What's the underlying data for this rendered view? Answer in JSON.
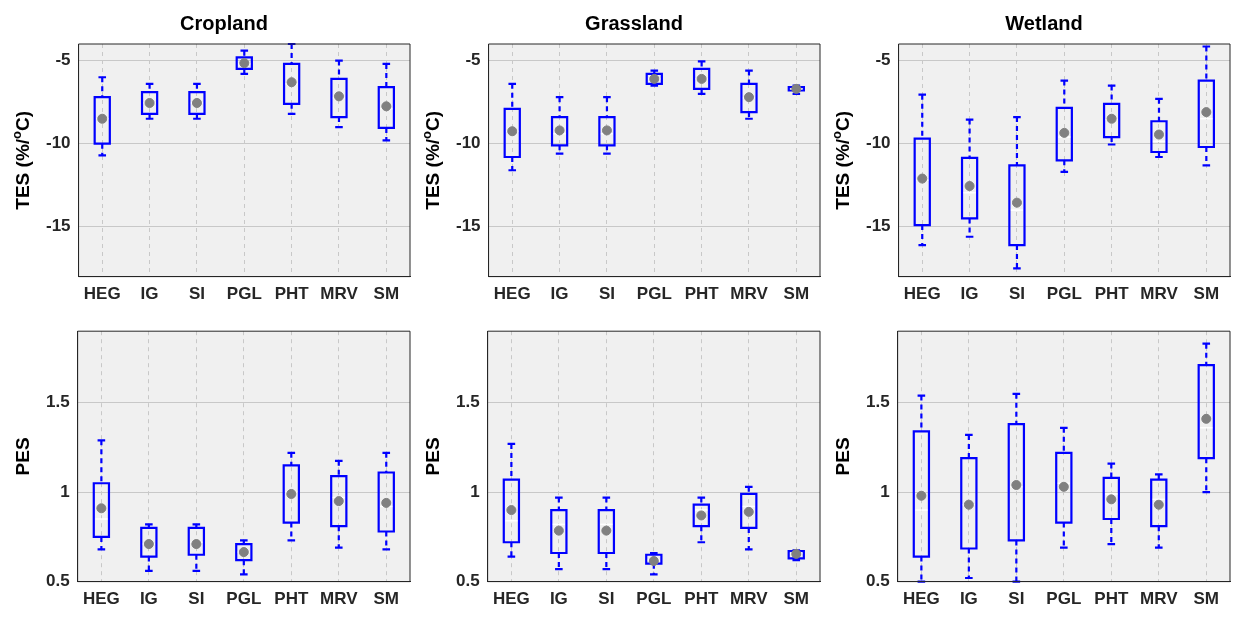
{
  "chart_data": [
    {
      "type": "box",
      "title": "Cropland",
      "ylabel": "TES (%/$^{o}$C)",
      "categories": [
        "HEG",
        "IG",
        "SI",
        "PGL",
        "PHT",
        "MRV",
        "SM"
      ],
      "ylim": [
        -18,
        -4
      ],
      "yticks": [
        -15,
        -10,
        -5
      ],
      "grid": true,
      "series": [
        {
          "color": "#0000ff",
          "boxes": [
            {
              "low": -10.7,
              "q1": -10.0,
              "median": -8.5,
              "q3": -7.2,
              "high": -6.0,
              "mean": -8.5
            },
            {
              "low": -8.5,
              "q1": -8.2,
              "median": -7.55,
              "q3": -6.9,
              "high": -6.4,
              "mean": -7.55
            },
            {
              "low": -8.5,
              "q1": -8.2,
              "median": -7.55,
              "q3": -6.9,
              "high": -6.4,
              "mean": -7.55
            },
            {
              "low": -5.8,
              "q1": -5.5,
              "median": -5.2,
              "q3": -4.8,
              "high": -4.4,
              "mean": -5.15
            },
            {
              "low": -8.2,
              "q1": -7.6,
              "median": -6.4,
              "q3": -5.2,
              "high": -4.0,
              "mean": -6.3
            },
            {
              "low": -9.0,
              "q1": -8.4,
              "median": -7.25,
              "q3": -6.1,
              "high": -5.0,
              "mean": -7.15
            },
            {
              "low": -9.8,
              "q1": -9.05,
              "median": -7.9,
              "q3": -6.6,
              "high": -5.2,
              "mean": -7.75
            }
          ]
        }
      ]
    },
    {
      "type": "box",
      "title": "Grassland",
      "ylabel": "TES (%/$^{o}$C)",
      "categories": [
        "HEG",
        "IG",
        "SI",
        "PGL",
        "PHT",
        "MRV",
        "SM"
      ],
      "ylim": [
        -18,
        -4
      ],
      "yticks": [
        -15,
        -10,
        -5
      ],
      "grid": true,
      "series": [
        {
          "color": "#0000ff",
          "boxes": [
            {
              "low": -11.6,
              "q1": -10.8,
              "median": -9.25,
              "q3": -7.9,
              "high": -6.4,
              "mean": -9.25
            },
            {
              "low": -10.6,
              "q1": -10.1,
              "median": -9.4,
              "q3": -8.4,
              "high": -7.2,
              "mean": -9.2
            },
            {
              "low": -10.6,
              "q1": -10.1,
              "median": -9.4,
              "q3": -8.4,
              "high": -7.2,
              "mean": -9.2
            },
            {
              "low": -6.5,
              "q1": -6.4,
              "median": -6.1,
              "q3": -5.8,
              "high": -5.6,
              "mean": -6.1
            },
            {
              "low": -7.0,
              "q1": -6.7,
              "median": -6.1,
              "q3": -5.5,
              "high": -5.05,
              "mean": -6.1
            },
            {
              "low": -8.5,
              "q1": -8.1,
              "median": -7.25,
              "q3": -6.4,
              "high": -5.6,
              "mean": -7.2
            },
            {
              "low": -7.0,
              "q1": -6.8,
              "median": -6.7,
              "q3": -6.6,
              "high": -6.5,
              "mean": -6.7
            }
          ]
        }
      ]
    },
    {
      "type": "box",
      "title": "Wetland",
      "ylabel": "TES (%/$^{o}$C)",
      "categories": [
        "HEG",
        "IG",
        "SI",
        "PGL",
        "PHT",
        "MRV",
        "SM"
      ],
      "ylim": [
        -18,
        -4
      ],
      "yticks": [
        -15,
        -10,
        -5
      ],
      "grid": true,
      "series": [
        {
          "color": "#0000ff",
          "boxes": [
            {
              "low": -16.1,
              "q1": -14.9,
              "median": -12.2,
              "q3": -9.7,
              "high": -7.05,
              "mean": -12.1
            },
            {
              "low": -15.6,
              "q1": -14.5,
              "median": -12.95,
              "q3": -10.85,
              "high": -8.55,
              "mean": -12.55
            },
            {
              "low": -17.5,
              "q1": -16.1,
              "median": -14.0,
              "q3": -11.3,
              "high": -8.4,
              "mean": -13.55
            },
            {
              "low": -11.7,
              "q1": -11.0,
              "median": -9.6,
              "q3": -7.85,
              "high": -6.2,
              "mean": -9.35
            },
            {
              "low": -10.05,
              "q1": -9.6,
              "median": -8.55,
              "q3": -7.6,
              "high": -6.5,
              "mean": -8.5
            },
            {
              "low": -10.8,
              "q1": -10.5,
              "median": -9.85,
              "q3": -8.65,
              "high": -7.3,
              "mean": -9.45
            },
            {
              "low": -11.3,
              "q1": -10.2,
              "median": -8.5,
              "q3": -6.2,
              "high": -4.15,
              "mean": -8.1
            }
          ]
        }
      ]
    },
    {
      "type": "box",
      "ylabel": "PES",
      "categories": [
        "HEG",
        "IG",
        "SI",
        "PGL",
        "PHT",
        "MRV",
        "SM"
      ],
      "ylim": [
        0.5,
        1.9
      ],
      "yticks": [
        0.5,
        1,
        1.5
      ],
      "grid": true,
      "series": [
        {
          "color": "#0000ff",
          "boxes": [
            {
              "low": 0.68,
              "q1": 0.75,
              "median": 0.85,
              "q3": 1.05,
              "high": 1.29,
              "mean": 0.91
            },
            {
              "low": 0.56,
              "q1": 0.64,
              "median": 0.71,
              "q3": 0.8,
              "high": 0.82,
              "mean": 0.71
            },
            {
              "low": 0.56,
              "q1": 0.65,
              "median": 0.72,
              "q3": 0.8,
              "high": 0.82,
              "mean": 0.71
            },
            {
              "low": 0.54,
              "q1": 0.62,
              "median": 0.665,
              "q3": 0.71,
              "high": 0.73,
              "mean": 0.665
            },
            {
              "low": 0.73,
              "q1": 0.83,
              "median": 1.0,
              "q3": 1.15,
              "high": 1.22,
              "mean": 0.99
            },
            {
              "low": 0.69,
              "q1": 0.81,
              "median": 0.97,
              "q3": 1.09,
              "high": 1.175,
              "mean": 0.95
            },
            {
              "low": 0.68,
              "q1": 0.78,
              "median": 0.92,
              "q3": 1.11,
              "high": 1.22,
              "mean": 0.94
            }
          ]
        }
      ]
    },
    {
      "type": "box",
      "ylabel": "PES",
      "categories": [
        "HEG",
        "IG",
        "SI",
        "PGL",
        "PHT",
        "MRV",
        "SM"
      ],
      "ylim": [
        0.5,
        1.9
      ],
      "yticks": [
        0.5,
        1,
        1.5
      ],
      "grid": true,
      "series": [
        {
          "color": "#0000ff",
          "boxes": [
            {
              "low": 0.64,
              "q1": 0.72,
              "median": 0.84,
              "q3": 1.07,
              "high": 1.27,
              "mean": 0.9
            },
            {
              "low": 0.57,
              "q1": 0.66,
              "median": 0.82,
              "q3": 0.9,
              "high": 0.97,
              "mean": 0.785
            },
            {
              "low": 0.57,
              "q1": 0.66,
              "median": 0.82,
              "q3": 0.9,
              "high": 0.97,
              "mean": 0.785
            },
            {
              "low": 0.54,
              "q1": 0.6,
              "median": 0.62,
              "q3": 0.65,
              "high": 0.66,
              "mean": 0.615
            },
            {
              "low": 0.72,
              "q1": 0.81,
              "median": 0.9,
              "q3": 0.93,
              "high": 0.97,
              "mean": 0.87
            },
            {
              "low": 0.68,
              "q1": 0.8,
              "median": 0.92,
              "q3": 0.99,
              "high": 1.03,
              "mean": 0.89
            },
            {
              "low": 0.62,
              "q1": 0.63,
              "median": 0.66,
              "q3": 0.67,
              "high": 0.675,
              "mean": 0.655
            }
          ]
        }
      ]
    },
    {
      "type": "box",
      "ylabel": "PES",
      "categories": [
        "HEG",
        "IG",
        "SI",
        "PGL",
        "PHT",
        "MRV",
        "SM"
      ],
      "ylim": [
        0.5,
        1.9
      ],
      "yticks": [
        0.5,
        1,
        1.5
      ],
      "grid": true,
      "series": [
        {
          "color": "#0000ff",
          "boxes": [
            {
              "low": 0.5,
              "q1": 0.64,
              "median": 0.9,
              "q3": 1.34,
              "high": 1.54,
              "mean": 0.98
            },
            {
              "low": 0.52,
              "q1": 0.685,
              "median": 0.93,
              "q3": 1.19,
              "high": 1.32,
              "mean": 0.93
            },
            {
              "low": 0.5,
              "q1": 0.73,
              "median": 1.03,
              "q3": 1.38,
              "high": 1.55,
              "mean": 1.04
            },
            {
              "low": 0.69,
              "q1": 0.83,
              "median": 1.05,
              "q3": 1.22,
              "high": 1.36,
              "mean": 1.03
            },
            {
              "low": 0.71,
              "q1": 0.85,
              "median": 0.99,
              "q3": 1.08,
              "high": 1.16,
              "mean": 0.96
            },
            {
              "low": 0.69,
              "q1": 0.81,
              "median": 0.96,
              "q3": 1.07,
              "high": 1.1,
              "mean": 0.93
            },
            {
              "low": 1.0,
              "q1": 1.19,
              "median": 1.36,
              "q3": 1.71,
              "high": 1.83,
              "mean": 1.41
            }
          ]
        }
      ]
    }
  ]
}
